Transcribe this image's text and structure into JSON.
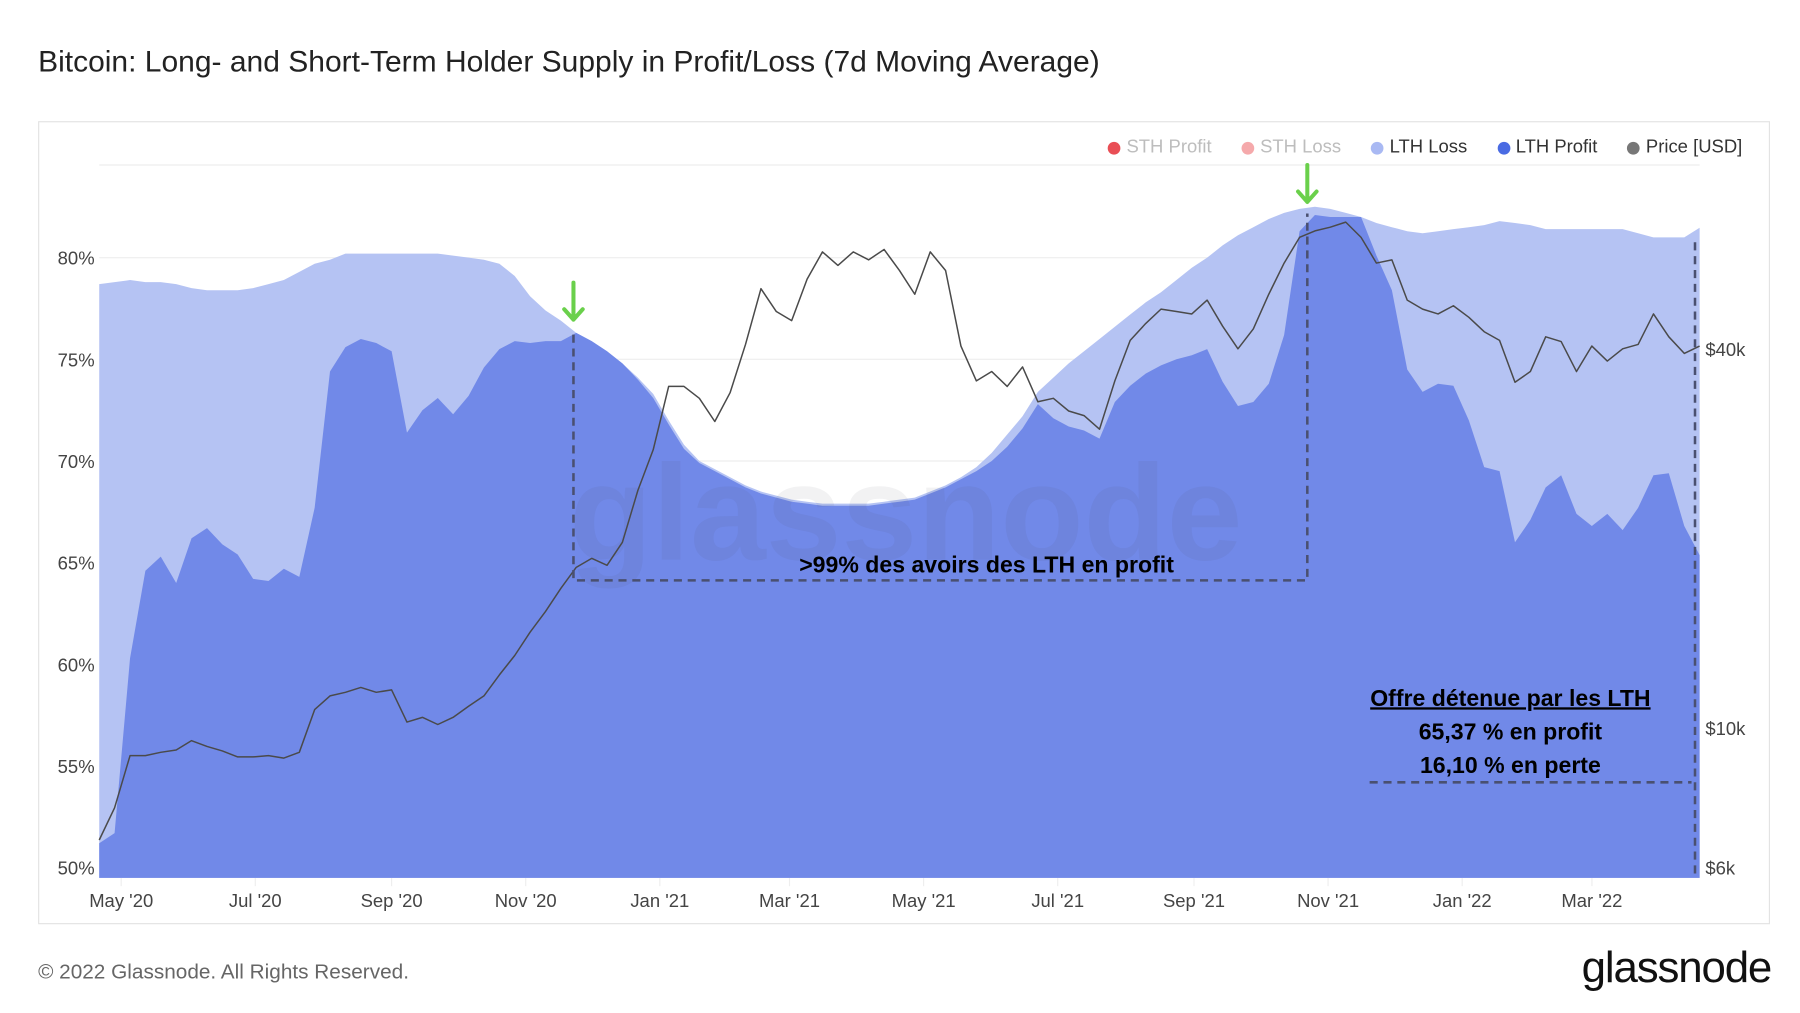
{
  "title": "Bitcoin: Long- and Short-Term Holder Supply in Profit/Loss (7d Moving Average)",
  "legend": [
    {
      "label": "STH Profit",
      "color": "#e8454c",
      "active": false
    },
    {
      "label": "STH Loss",
      "color": "#f4a4a7",
      "active": false
    },
    {
      "label": "LTH Loss",
      "color": "#a9b9f3",
      "active": true
    },
    {
      "label": "LTH Profit",
      "color": "#4a6be3",
      "active": true
    },
    {
      "label": "Price [USD]",
      "color": "#777777",
      "active": true
    }
  ],
  "annotations": {
    "range_text": ">99% des avoirs des LTH en profit",
    "box_title": "Offre détenue par les LTH",
    "box_profit": "65,37 % en profit",
    "box_loss": "16,10 % en perte",
    "arrow_color": "#6ad04b"
  },
  "watermark": "glassnode",
  "footer": {
    "copyright": "© 2022 Glassnode. All Rights Reserved.",
    "logo": "glassnode"
  },
  "chart_data": {
    "type": "area",
    "dates_start": "2020-04-21",
    "dates_end": "2022-04-19",
    "interval": "weekly",
    "ylim": [
      49.5,
      84.5
    ],
    "y_right_scale": "log",
    "grid": true,
    "legend_position": "top-right",
    "yticks": [
      {
        "value": 50,
        "label": "50%"
      },
      {
        "value": 55,
        "label": "55%"
      },
      {
        "value": 60,
        "label": "60%"
      },
      {
        "value": 65,
        "label": "65%"
      },
      {
        "value": 70,
        "label": "70%"
      },
      {
        "value": 75,
        "label": "75%"
      },
      {
        "value": 80,
        "label": "80%"
      }
    ],
    "yticks_right": [
      {
        "value": 6000,
        "label": "$6k"
      },
      {
        "value": 10000,
        "label": "$10k"
      },
      {
        "value": 40000,
        "label": "$40k"
      }
    ],
    "xticks": [
      {
        "date": "2020-05-01",
        "label": "May '20"
      },
      {
        "date": "2020-07-01",
        "label": "Jul '20"
      },
      {
        "date": "2020-09-01",
        "label": "Sep '20"
      },
      {
        "date": "2020-11-01",
        "label": "Nov '20"
      },
      {
        "date": "2021-01-01",
        "label": "Jan '21"
      },
      {
        "date": "2021-03-01",
        "label": "Mar '21"
      },
      {
        "date": "2021-05-01",
        "label": "May '21"
      },
      {
        "date": "2021-07-01",
        "label": "Jul '21"
      },
      {
        "date": "2021-09-01",
        "label": "Sep '21"
      },
      {
        "date": "2021-11-01",
        "label": "Nov '21"
      },
      {
        "date": "2022-01-01",
        "label": "Jan '22"
      },
      {
        "date": "2022-03-01",
        "label": "Mar '22"
      }
    ],
    "series": [
      {
        "name": "LTH Profit",
        "unit": "%",
        "color": "#7189e8",
        "values": [
          51.2,
          51.7,
          60.3,
          64.6,
          65.3,
          64.0,
          66.2,
          66.7,
          65.9,
          65.4,
          64.2,
          64.1,
          64.7,
          64.3,
          67.7,
          74.4,
          75.6,
          76.0,
          75.8,
          75.4,
          71.4,
          72.5,
          73.1,
          72.3,
          73.2,
          74.6,
          75.5,
          75.9,
          75.8,
          75.9,
          75.9,
          76.3,
          75.9,
          75.4,
          74.8,
          74.0,
          73.1,
          71.8,
          70.6,
          69.9,
          69.5,
          69.1,
          68.7,
          68.4,
          68.2,
          68.0,
          67.9,
          67.8,
          67.8,
          67.8,
          67.8,
          67.9,
          68.0,
          68.1,
          68.4,
          68.7,
          69.1,
          69.5,
          70.0,
          70.7,
          71.6,
          72.8,
          72.1,
          71.7,
          71.5,
          71.1,
          72.9,
          73.7,
          74.3,
          74.7,
          75.0,
          75.2,
          75.5,
          73.9,
          72.7,
          72.9,
          73.8,
          76.2,
          81.3,
          82.1,
          82.0,
          82.0,
          82.0,
          80.1,
          78.4,
          74.5,
          73.4,
          73.8,
          73.7,
          72.0,
          69.7,
          69.5,
          66.0,
          67.1,
          68.7,
          69.3,
          67.4,
          66.8,
          67.4,
          66.6,
          67.7,
          69.3,
          69.4,
          66.8,
          65.37
        ]
      },
      {
        "name": "LTH Loss",
        "unit": "%",
        "stacked_on": "LTH Profit",
        "color": "#b5c3f3",
        "values": [
          27.5,
          27.1,
          18.6,
          14.2,
          13.5,
          14.7,
          12.3,
          11.7,
          12.5,
          13.0,
          14.3,
          14.6,
          14.2,
          15.0,
          12.0,
          5.5,
          4.6,
          4.2,
          4.4,
          4.8,
          8.8,
          7.7,
          7.1,
          7.8,
          6.8,
          5.3,
          4.2,
          3.2,
          2.3,
          1.5,
          1.0,
          0.0,
          0.0,
          0.0,
          0.0,
          0.1,
          0.2,
          0.2,
          0.2,
          0.1,
          0.1,
          0.1,
          0.1,
          0.1,
          0.1,
          0.1,
          0.1,
          0.1,
          0.1,
          0.1,
          0.1,
          0.1,
          0.1,
          0.1,
          0.1,
          0.1,
          0.1,
          0.2,
          0.4,
          0.6,
          0.6,
          0.6,
          2.0,
          3.1,
          3.9,
          4.9,
          3.7,
          3.5,
          3.5,
          3.6,
          3.9,
          4.3,
          4.5,
          6.7,
          8.4,
          8.6,
          8.1,
          6.0,
          1.1,
          0.4,
          0.4,
          0.2,
          0.0,
          1.6,
          3.1,
          6.8,
          7.8,
          7.5,
          7.7,
          9.5,
          11.9,
          12.3,
          15.7,
          14.5,
          12.7,
          12.1,
          14.0,
          14.6,
          14.0,
          14.8,
          13.5,
          11.7,
          11.6,
          14.2,
          16.1
        ]
      },
      {
        "name": "Price [USD]",
        "unit": "USD",
        "axis": "right",
        "color": "#4a4a4a",
        "values": [
          6640,
          7470,
          9040,
          9040,
          9150,
          9230,
          9550,
          9350,
          9200,
          9000,
          9000,
          9040,
          8960,
          9150,
          10700,
          11250,
          11400,
          11600,
          11400,
          11500,
          10220,
          10400,
          10130,
          10400,
          10830,
          11250,
          12150,
          13040,
          14200,
          15320,
          16670,
          18000,
          18610,
          18140,
          19730,
          23850,
          27680,
          34900,
          34900,
          33420,
          30700,
          34120,
          40700,
          49900,
          45900,
          44400,
          51670,
          57090,
          54330,
          57090,
          55460,
          57600,
          53330,
          48900,
          57090,
          53330,
          40450,
          35620,
          36850,
          34900,
          37480,
          33000,
          33420,
          31900,
          31360,
          29840,
          35620,
          41300,
          43920,
          46300,
          45900,
          45490,
          47860,
          43500,
          40040,
          43060,
          48900,
          54800,
          60200,
          61660,
          62480,
          63670,
          60200,
          54800,
          55460,
          47860,
          46300,
          45490,
          46880,
          44940,
          42620,
          41300,
          35430,
          36850,
          41850,
          41120,
          36850,
          40450,
          38300,
          40040,
          40700,
          45490,
          41850,
          39380,
          40450
        ]
      }
    ]
  }
}
